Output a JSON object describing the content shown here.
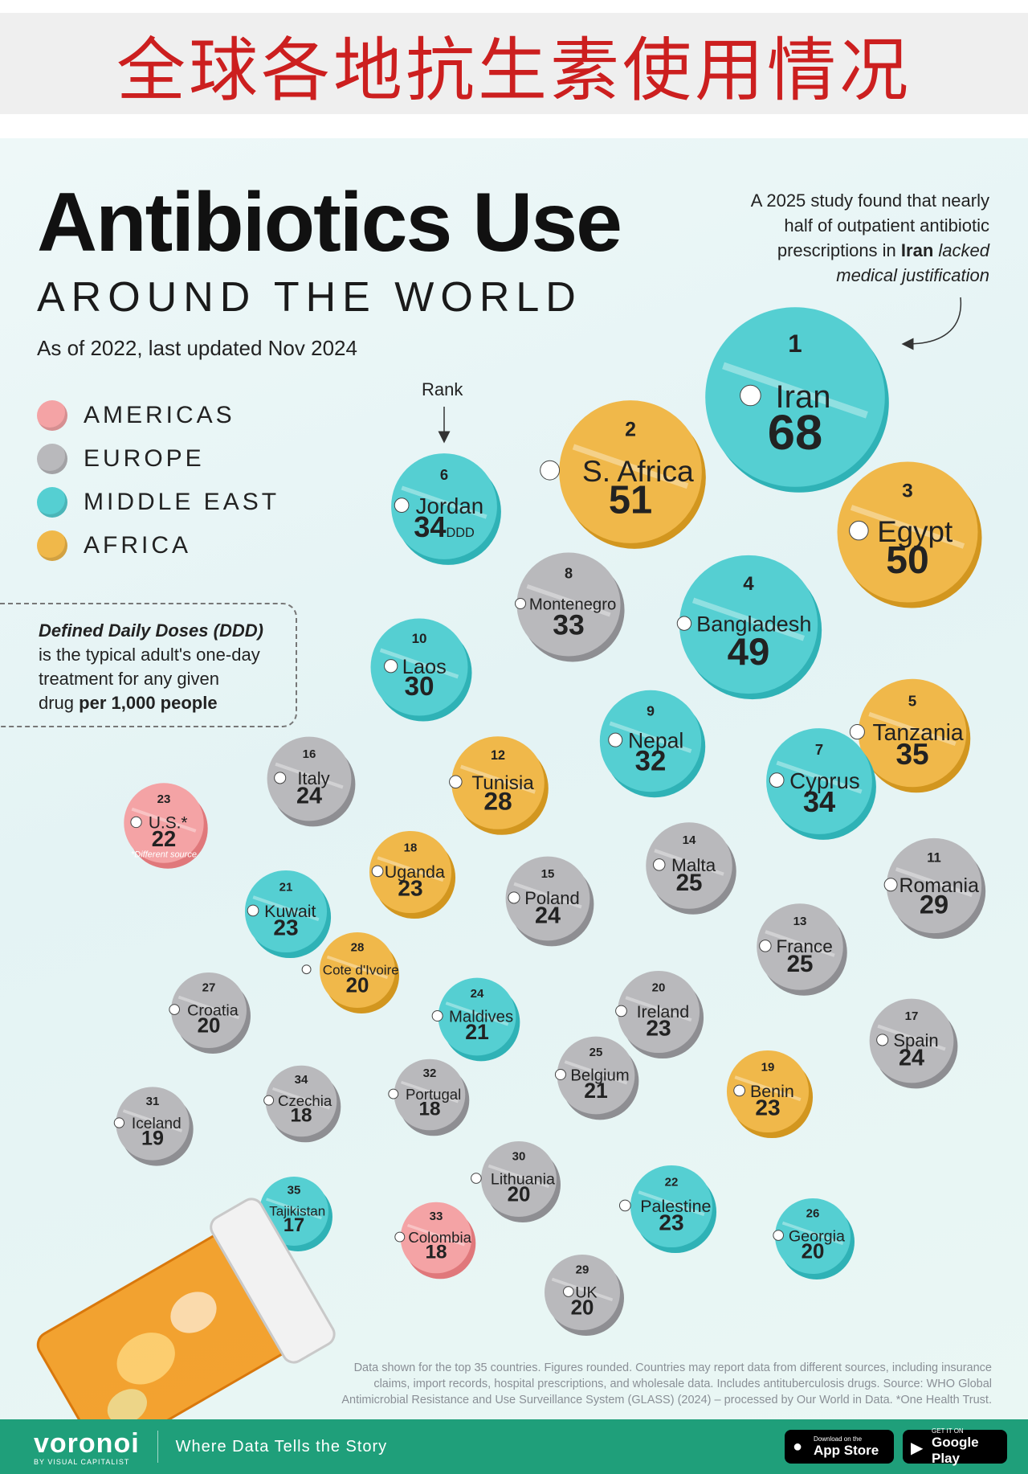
{
  "banner_title": "全球各地抗生素使用情况",
  "header": {
    "title": "Antibiotics Use",
    "subtitle": "AROUND THE WORLD",
    "dateline": "As of 2022, last updated Nov 2024"
  },
  "annotation": {
    "line1": "A 2025 study found that nearly",
    "line2": "half of outpatient antibiotic",
    "line3_pre": "prescriptions in ",
    "line3_bold": "Iran",
    "line3_italic": " lacked",
    "line4_italic": "medical justification"
  },
  "ddd_note": {
    "title": "Defined Daily Doses (DDD)",
    "body1": "is the typical adult's one-day",
    "body2": "treatment for any given",
    "body3_pre": "drug ",
    "body3_bold": "per 1,000 people"
  },
  "rank_label": "Rank",
  "colors": {
    "americas": "#f4a3a5",
    "europe": "#b9b9bc",
    "middle_east": "#55cfd2",
    "africa": "#f0b84a"
  },
  "chart_data": {
    "type": "bubble",
    "title": "Antibiotics Use Around the World",
    "unit": "DDD",
    "legend": [
      {
        "region": "americas",
        "label": "AMERICAS"
      },
      {
        "region": "europe",
        "label": "EUROPE"
      },
      {
        "region": "middle_east",
        "label": "MIDDLE EAST"
      },
      {
        "region": "africa",
        "label": "AFRICA"
      }
    ],
    "countries": [
      {
        "rank": 1,
        "name": "Iran",
        "value": 68,
        "region": "middle_east"
      },
      {
        "rank": 2,
        "name": "S. Africa",
        "value": 51,
        "region": "africa"
      },
      {
        "rank": 3,
        "name": "Egypt",
        "value": 50,
        "region": "africa"
      },
      {
        "rank": 4,
        "name": "Bangladesh",
        "value": 49,
        "region": "middle_east"
      },
      {
        "rank": 5,
        "name": "Tanzania",
        "value": 35,
        "region": "africa"
      },
      {
        "rank": 6,
        "name": "Jordan",
        "value": 34,
        "region": "middle_east",
        "unit_label": "DDD"
      },
      {
        "rank": 7,
        "name": "Cyprus",
        "value": 34,
        "region": "middle_east"
      },
      {
        "rank": 8,
        "name": "Montenegro",
        "value": 33,
        "region": "europe"
      },
      {
        "rank": 9,
        "name": "Nepal",
        "value": 32,
        "region": "middle_east"
      },
      {
        "rank": 10,
        "name": "Laos",
        "value": 30,
        "region": "middle_east"
      },
      {
        "rank": 11,
        "name": "Romania",
        "value": 29,
        "region": "europe"
      },
      {
        "rank": 12,
        "name": "Tunisia",
        "value": 28,
        "region": "africa"
      },
      {
        "rank": 13,
        "name": "France",
        "value": 25,
        "region": "europe"
      },
      {
        "rank": 14,
        "name": "Malta",
        "value": 25,
        "region": "europe"
      },
      {
        "rank": 15,
        "name": "Poland",
        "value": 24,
        "region": "europe"
      },
      {
        "rank": 16,
        "name": "Italy",
        "value": 24,
        "region": "europe"
      },
      {
        "rank": 17,
        "name": "Spain",
        "value": 24,
        "region": "europe"
      },
      {
        "rank": 18,
        "name": "Uganda",
        "value": 23,
        "region": "africa"
      },
      {
        "rank": 19,
        "name": "Benin",
        "value": 23,
        "region": "africa"
      },
      {
        "rank": 20,
        "name": "Ireland",
        "value": 23,
        "region": "europe"
      },
      {
        "rank": 21,
        "name": "Kuwait",
        "value": 23,
        "region": "middle_east"
      },
      {
        "rank": 22,
        "name": "Palestine",
        "value": 23,
        "region": "middle_east"
      },
      {
        "rank": 23,
        "name": "U.S.*",
        "value": 22,
        "region": "americas",
        "note": "*Different source"
      },
      {
        "rank": 24,
        "name": "Maldives",
        "value": 21,
        "region": "middle_east"
      },
      {
        "rank": 25,
        "name": "Belgium",
        "value": 21,
        "region": "europe"
      },
      {
        "rank": 26,
        "name": "Georgia",
        "value": 20,
        "region": "middle_east"
      },
      {
        "rank": 27,
        "name": "Croatia",
        "value": 20,
        "region": "europe"
      },
      {
        "rank": 28,
        "name": "Cote d'Ivoire",
        "value": 20,
        "region": "africa"
      },
      {
        "rank": 29,
        "name": "UK",
        "value": 20,
        "region": "europe"
      },
      {
        "rank": 30,
        "name": "Lithuania",
        "value": 20,
        "region": "europe"
      },
      {
        "rank": 31,
        "name": "Iceland",
        "value": 19,
        "region": "europe"
      },
      {
        "rank": 32,
        "name": "Portugal",
        "value": 18,
        "region": "europe"
      },
      {
        "rank": 33,
        "name": "Colombia",
        "value": 18,
        "region": "americas"
      },
      {
        "rank": 34,
        "name": "Czechia",
        "value": 18,
        "region": "europe"
      },
      {
        "rank": 35,
        "name": "Tajikistan",
        "value": 17,
        "region": "middle_east"
      }
    ]
  },
  "footnote": {
    "line1": "Data shown for the top 35 countries. Figures rounded. Countries may report data from different sources, including insurance",
    "line2": "claims, import records, hospital prescriptions, and wholesale data. Includes antituberculosis drugs. Source: WHO Global",
    "line3": "Antimicrobial Resistance and Use Surveillance System (GLASS) (2024) – processed by Our World in Data. *One Health Trust."
  },
  "footer": {
    "brand": "voronoi",
    "brand_sub": "BY VISUAL CAPITALIST",
    "tagline": "Where Data Tells the Story",
    "appstore_small": "Download on the",
    "appstore_big": "App Store",
    "googleplay_small": "GET IT ON",
    "googleplay_big": "Google Play"
  }
}
